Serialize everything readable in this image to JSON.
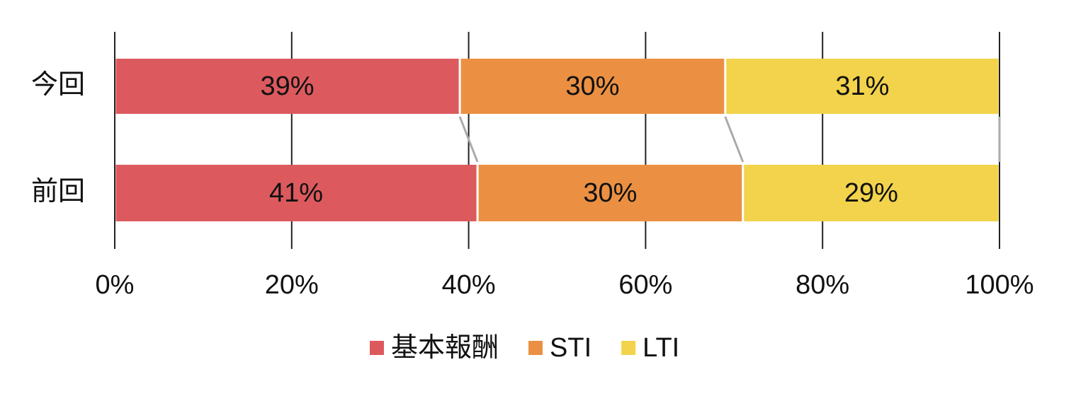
{
  "chart_data": {
    "type": "stacked-bar-horizontal",
    "categories": [
      "今回",
      "前回"
    ],
    "series": [
      {
        "name": "基本報酬",
        "color": "#dc5a5e",
        "values": [
          39,
          41
        ],
        "value_labels": [
          "39%",
          "41%"
        ]
      },
      {
        "name": "STI",
        "color": "#eb9042",
        "values": [
          30,
          30
        ],
        "value_labels": [
          "30%",
          "30%"
        ]
      },
      {
        "name": "LTI",
        "color": "#f2d34b",
        "values": [
          31,
          29
        ],
        "value_labels": [
          "31%",
          "29%"
        ]
      }
    ],
    "xlim": [
      0,
      100
    ],
    "xticks": [
      {
        "value": 0,
        "label": "0%"
      },
      {
        "value": 20,
        "label": "20%"
      },
      {
        "value": 40,
        "label": "40%"
      },
      {
        "value": 60,
        "label": "60%"
      },
      {
        "value": 80,
        "label": "80%"
      },
      {
        "value": 100,
        "label": "100%"
      }
    ],
    "grid": true,
    "legend": "bottom"
  }
}
